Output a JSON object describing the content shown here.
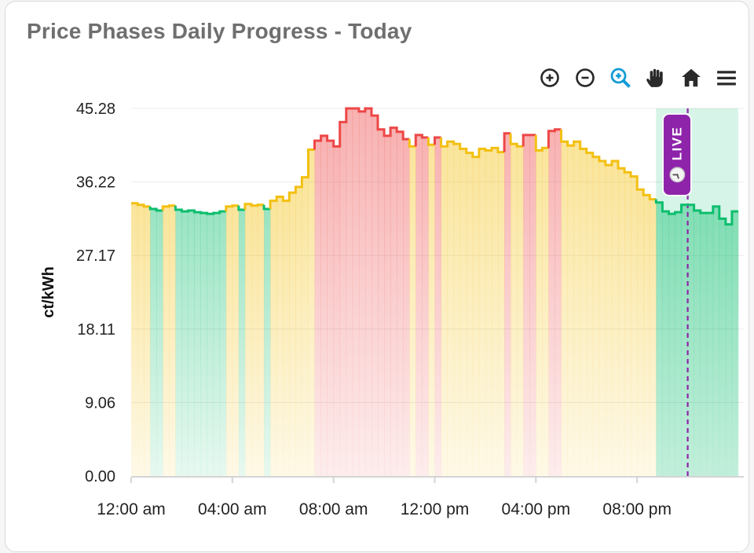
{
  "card": {
    "title": "Price Phases Daily Progress - Today"
  },
  "toolbar": {
    "icon_color": "#2a2a2a",
    "active_icon_color": "#129bd5",
    "buttons": [
      {
        "name": "zoom-in",
        "icon": "zoom-in-icon",
        "active": false
      },
      {
        "name": "zoom-out",
        "icon": "zoom-out-icon",
        "active": false
      },
      {
        "name": "box-zoom",
        "icon": "box-zoom-icon",
        "active": true
      },
      {
        "name": "pan",
        "icon": "pan-icon",
        "active": false
      },
      {
        "name": "reset-axes",
        "icon": "home-icon",
        "active": false
      },
      {
        "name": "menu",
        "icon": "menu-icon",
        "active": false
      }
    ]
  },
  "live_marker": {
    "label": "LIVE",
    "icon": "clock-icon",
    "background": "#8e24aa",
    "text_color": "#ffffff"
  },
  "chart_data": {
    "type": "area",
    "title": "Price Phases Daily Progress - Today",
    "xlabel": "",
    "ylabel": "ct/kWh",
    "ylim": [
      0,
      45.28
    ],
    "ytick_values": [
      0,
      9.06,
      18.11,
      27.17,
      36.22,
      45.28
    ],
    "ytick_labels": [
      "0.00",
      "9.06",
      "18.11",
      "27.17",
      "36.22",
      "45.28"
    ],
    "xtick_hours": [
      0,
      4,
      8,
      12,
      16,
      20
    ],
    "xtick_labels": [
      "12:00 am",
      "04:00 am",
      "08:00 am",
      "12:00 pm",
      "04:00 pm",
      "08:00 pm"
    ],
    "grid": "horizontal",
    "legend": "none",
    "step_minutes": 15,
    "x_start_hour": 0,
    "x_end_hour": 24,
    "phase_colors": {
      "g": "#0dbe6e",
      "y": "#f3c012",
      "r": "#ed4747"
    },
    "phase_fill_opacity": {
      "top": 0.42,
      "bottom": 0.1
    },
    "now_hour": 22.0,
    "now_line_color": "#8e24aa",
    "green_window": {
      "start_hour": 20.75,
      "end_hour": 24,
      "color": "#0dbe6e",
      "opacity": 0.17
    },
    "series": [
      {
        "name": "price",
        "unit": "ct/kWh",
        "values": [
          33.6,
          33.4,
          33.2,
          32.9,
          32.7,
          33.2,
          33.3,
          32.8,
          32.6,
          32.7,
          32.5,
          32.4,
          32.3,
          32.4,
          32.6,
          33.2,
          33.3,
          32.8,
          33.5,
          33.3,
          33.4,
          32.9,
          33.9,
          34.4,
          33.9,
          34.9,
          35.6,
          36.8,
          40.2,
          41.3,
          41.9,
          41.3,
          40.6,
          43.6,
          45.28,
          45.28,
          44.9,
          45.28,
          44.4,
          42.7,
          41.9,
          42.9,
          42.4,
          41.5,
          40.6,
          42.0,
          41.7,
          40.8,
          41.7,
          40.6,
          41.2,
          40.9,
          40.3,
          39.8,
          39.3,
          40.3,
          40.1,
          40.4,
          39.9,
          42.2,
          40.9,
          40.6,
          42.0,
          42.0,
          40.1,
          40.4,
          42.5,
          42.7,
          41.2,
          40.7,
          41.2,
          40.3,
          39.8,
          39.3,
          38.8,
          38.3,
          38.8,
          37.9,
          37.4,
          36.9,
          35.3,
          34.6,
          34.1,
          33.7,
          32.6,
          32.3,
          32.5,
          33.4,
          33.4,
          32.7,
          32.4,
          32.4,
          33.2,
          31.7,
          31.0,
          32.6
        ],
        "phases": "yyyggyyggggggggyygyyygyyyyyyyrrrrrrrrrrrrrrryrryryyyyyyyyyyryyrryyrryyyyyyyyyyyyyyyggggggggggggg"
      }
    ]
  }
}
